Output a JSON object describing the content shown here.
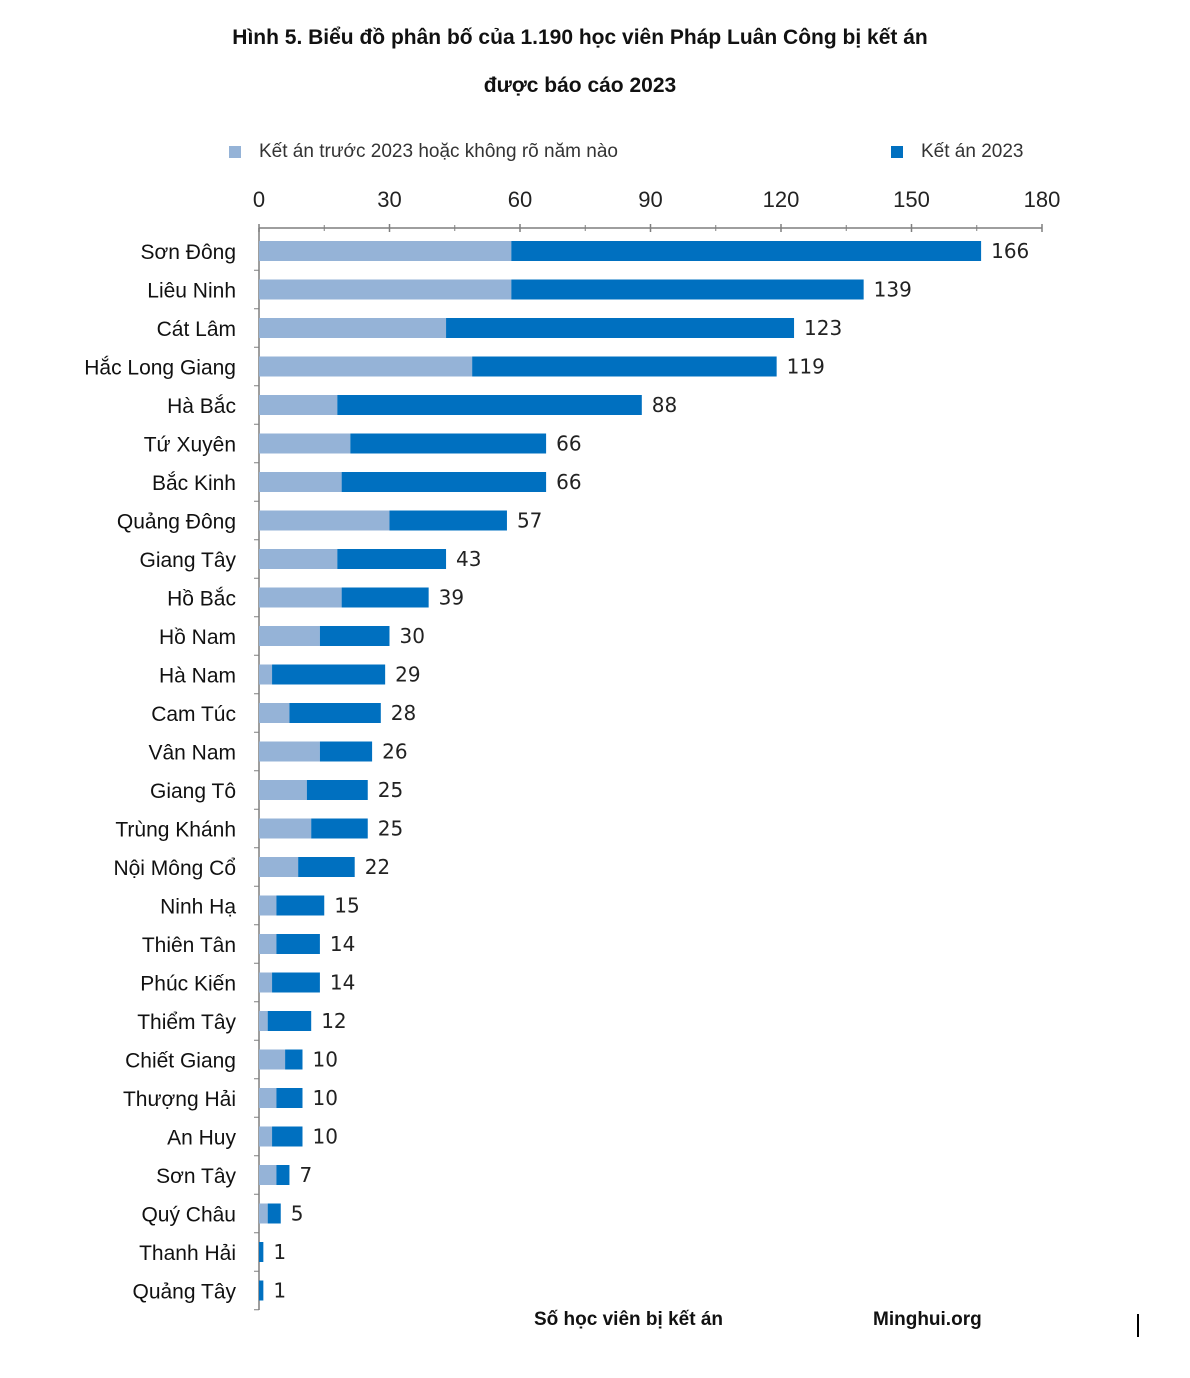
{
  "title_line1": "Hình 5. Biểu đồ phân bố của 1.190 học viên Pháp Luân Công bị kết án",
  "title_line2": "được báo cáo 2023",
  "source": "Minghui.org",
  "colors": {
    "prior": "#95b3d7",
    "y2023": "#0070c0",
    "axis": "#7f7f7f"
  },
  "chart_data": {
    "type": "bar",
    "orientation": "horizontal",
    "stacked": true,
    "title": "Hình 5. Biểu đồ phân bố của 1.190 học viên Pháp Luân Công bị kết án được báo cáo 2023",
    "xlabel": "Số học viên bị kết án",
    "ylabel": "",
    "xlim": [
      0,
      180
    ],
    "xticks": [
      "0",
      "30",
      "60",
      "90",
      "120",
      "150",
      "180"
    ],
    "legend_position": "top",
    "grid": false,
    "categories": [
      "Sơn Đông",
      "Liêu Ninh",
      "Cát Lâm",
      "Hắc Long Giang",
      "Hà Bắc",
      "Tứ Xuyên",
      "Bắc Kinh",
      "Quảng Đông",
      "Giang Tây",
      "Hồ Bắc",
      "Hồ Nam",
      "Hà Nam",
      "Cam Túc",
      "Vân Nam",
      "Giang Tô",
      "Trùng Khánh",
      "Nội Mông Cổ",
      "Ninh Hạ",
      "Thiên Tân",
      "Phúc Kiến",
      "Thiểm Tây",
      "Chiết Giang",
      "Thượng Hải",
      "An Huy",
      "Sơn Tây",
      "Quý Châu",
      "Thanh Hải",
      "Quảng Tây"
    ],
    "series": [
      {
        "name": "Kết án trước 2023 hoặc không rõ năm nào",
        "values": [
          58,
          58,
          43,
          49,
          18,
          21,
          19,
          30,
          18,
          19,
          14,
          3,
          7,
          14,
          11,
          12,
          9,
          4,
          4,
          3,
          2,
          6,
          4,
          3,
          4,
          2,
          0,
          0
        ]
      },
      {
        "name": "Kết án 2023",
        "values": [
          108,
          81,
          80,
          70,
          70,
          45,
          47,
          27,
          25,
          20,
          16,
          26,
          21,
          12,
          14,
          13,
          13,
          11,
          10,
          11,
          10,
          4,
          6,
          7,
          3,
          3,
          1,
          1
        ]
      }
    ],
    "totals": [
      166,
      139,
      123,
      119,
      88,
      66,
      66,
      57,
      43,
      39,
      30,
      29,
      28,
      26,
      25,
      25,
      22,
      15,
      14,
      14,
      12,
      10,
      10,
      10,
      7,
      5,
      1,
      1
    ]
  }
}
